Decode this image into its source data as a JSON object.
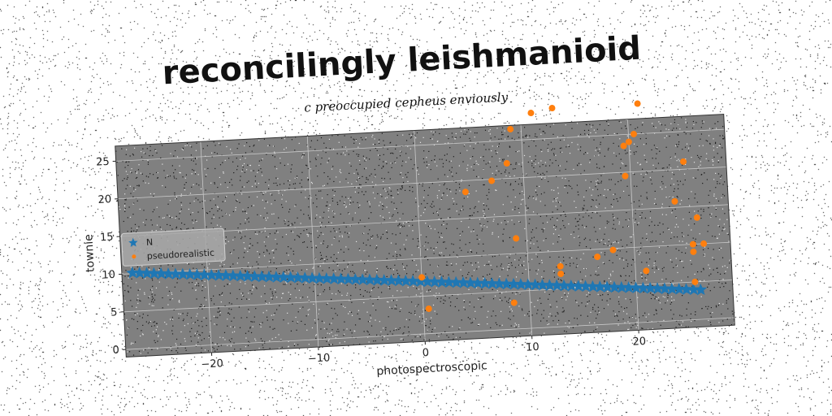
{
  "chart_data": {
    "type": "scatter",
    "title": "reconcilingly leishmanioid",
    "subtitle": "c preoccupied cepheus enviously",
    "xlabel": "photospectroscopic",
    "ylabel": "townie",
    "xlim": [
      -28,
      29
    ],
    "ylim": [
      -1,
      27
    ],
    "xticks": [
      -20,
      -10,
      0,
      10,
      20
    ],
    "yticks": [
      0,
      5,
      10,
      15,
      20,
      25
    ],
    "xtick_labels": [
      "−20",
      "−10",
      "0",
      "10",
      "20"
    ],
    "ytick_labels": [
      "0",
      "5",
      "10",
      "15",
      "20",
      "25"
    ],
    "grid": true,
    "legend_position": "center-left",
    "series": [
      {
        "name": "N",
        "marker": "star",
        "color": "#1f77b4",
        "line": {
          "x_start": -27,
          "x_end": 26,
          "y_start": 10.1,
          "y_end": 3.9,
          "count": 80
        }
      },
      {
        "name": "pseudorealistic",
        "marker": "circle",
        "color": "#ff7f0e",
        "points": [
          [
            0,
            7.5
          ],
          [
            0.5,
            3.3
          ],
          [
            4.5,
            18.5
          ],
          [
            7,
            19.8
          ],
          [
            8.5,
            22
          ],
          [
            9,
            12
          ],
          [
            9,
            26.5
          ],
          [
            8.5,
            3.5
          ],
          [
            11,
            28.5
          ],
          [
            13,
            29
          ],
          [
            13,
            8
          ],
          [
            13,
            7
          ],
          [
            16.5,
            9
          ],
          [
            18,
            9.8
          ],
          [
            19.5,
            19.5
          ],
          [
            19.5,
            23.5
          ],
          [
            20,
            24
          ],
          [
            20.5,
            25
          ],
          [
            21,
            29
          ],
          [
            21,
            6.8
          ],
          [
            24,
            15.8
          ],
          [
            25,
            21
          ],
          [
            25.5,
            10
          ],
          [
            25.5,
            9
          ],
          [
            25.5,
            5
          ],
          [
            26,
            13.5
          ],
          [
            26.5,
            10
          ]
        ]
      }
    ]
  },
  "colors": {
    "plot_background": "#808080",
    "grid": "#c8c8c8",
    "series_n": "#1f77b4",
    "series_pseudorealistic": "#ff7f0e"
  }
}
